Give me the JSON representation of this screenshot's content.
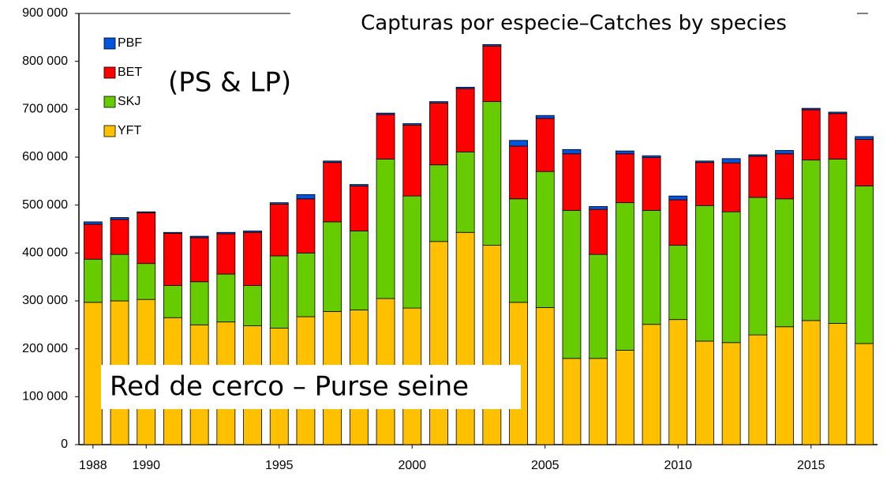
{
  "chart_data": {
    "type": "stacked_bar",
    "title": "Capturas por especie–Catches by species",
    "annotations": [
      "(PS & LP)",
      "Red de cerco – Purse seine"
    ],
    "categories": [
      "1988",
      null,
      "1990",
      null,
      null,
      null,
      null,
      "1995",
      null,
      null,
      null,
      null,
      "2000",
      null,
      null,
      null,
      null,
      "2005",
      null,
      null,
      null,
      null,
      "2010",
      null,
      null,
      null,
      null,
      "2015",
      null,
      null
    ],
    "series": [
      {
        "name": "YFT",
        "color": "#ffc000",
        "values": [
          297000,
          300000,
          303000,
          265000,
          250000,
          256000,
          248000,
          243000,
          267000,
          278000,
          281000,
          305000,
          285000,
          424000,
          443000,
          416000,
          297000,
          286000,
          180000,
          180000,
          197000,
          251000,
          261000,
          216000,
          213000,
          229000,
          246000,
          259000,
          253000,
          211000
        ]
      },
      {
        "name": "SKJ",
        "color": "#66cc00",
        "values": [
          90000,
          97000,
          75000,
          67000,
          90000,
          100000,
          84000,
          151000,
          133000,
          187000,
          165000,
          291000,
          234000,
          160000,
          168000,
          300000,
          216000,
          284000,
          309000,
          217000,
          308000,
          238000,
          155000,
          283000,
          273000,
          287000,
          267000,
          335000,
          343000,
          329000
        ]
      },
      {
        "name": "BET",
        "color": "#ff0000",
        "values": [
          73000,
          73000,
          106000,
          109000,
          92000,
          84000,
          111000,
          108000,
          113000,
          124000,
          94000,
          93000,
          148000,
          129000,
          132000,
          116000,
          110000,
          111000,
          118000,
          94000,
          102000,
          110000,
          95000,
          90000,
          102000,
          86000,
          94000,
          105000,
          95000,
          97000
        ]
      },
      {
        "name": "PBF",
        "color": "#0055dd",
        "values": [
          5000,
          4000,
          2000,
          2000,
          3000,
          3000,
          3000,
          3000,
          9000,
          3000,
          3000,
          3000,
          3000,
          3000,
          3000,
          3000,
          12000,
          6000,
          9000,
          6000,
          6000,
          4000,
          8000,
          3000,
          9000,
          3000,
          7000,
          3000,
          3000,
          6000
        ]
      }
    ],
    "ylim": [
      0,
      900000
    ],
    "yticks": [
      0,
      {
        "value": 100000,
        "label": "100 000"
      },
      {
        "value": 200000,
        "label": "200 000"
      },
      {
        "value": 300000,
        "label": "300 000"
      },
      {
        "value": 400000,
        "label": "400 000"
      },
      {
        "value": 500000,
        "label": "500 000"
      },
      {
        "value": 600000,
        "label": "600 000"
      },
      {
        "value": 700000,
        "label": "700 000"
      },
      {
        "value": 800000,
        "label": "800 000"
      },
      {
        "value": 900000,
        "label": "900 000"
      }
    ],
    "legend": "top-left"
  }
}
